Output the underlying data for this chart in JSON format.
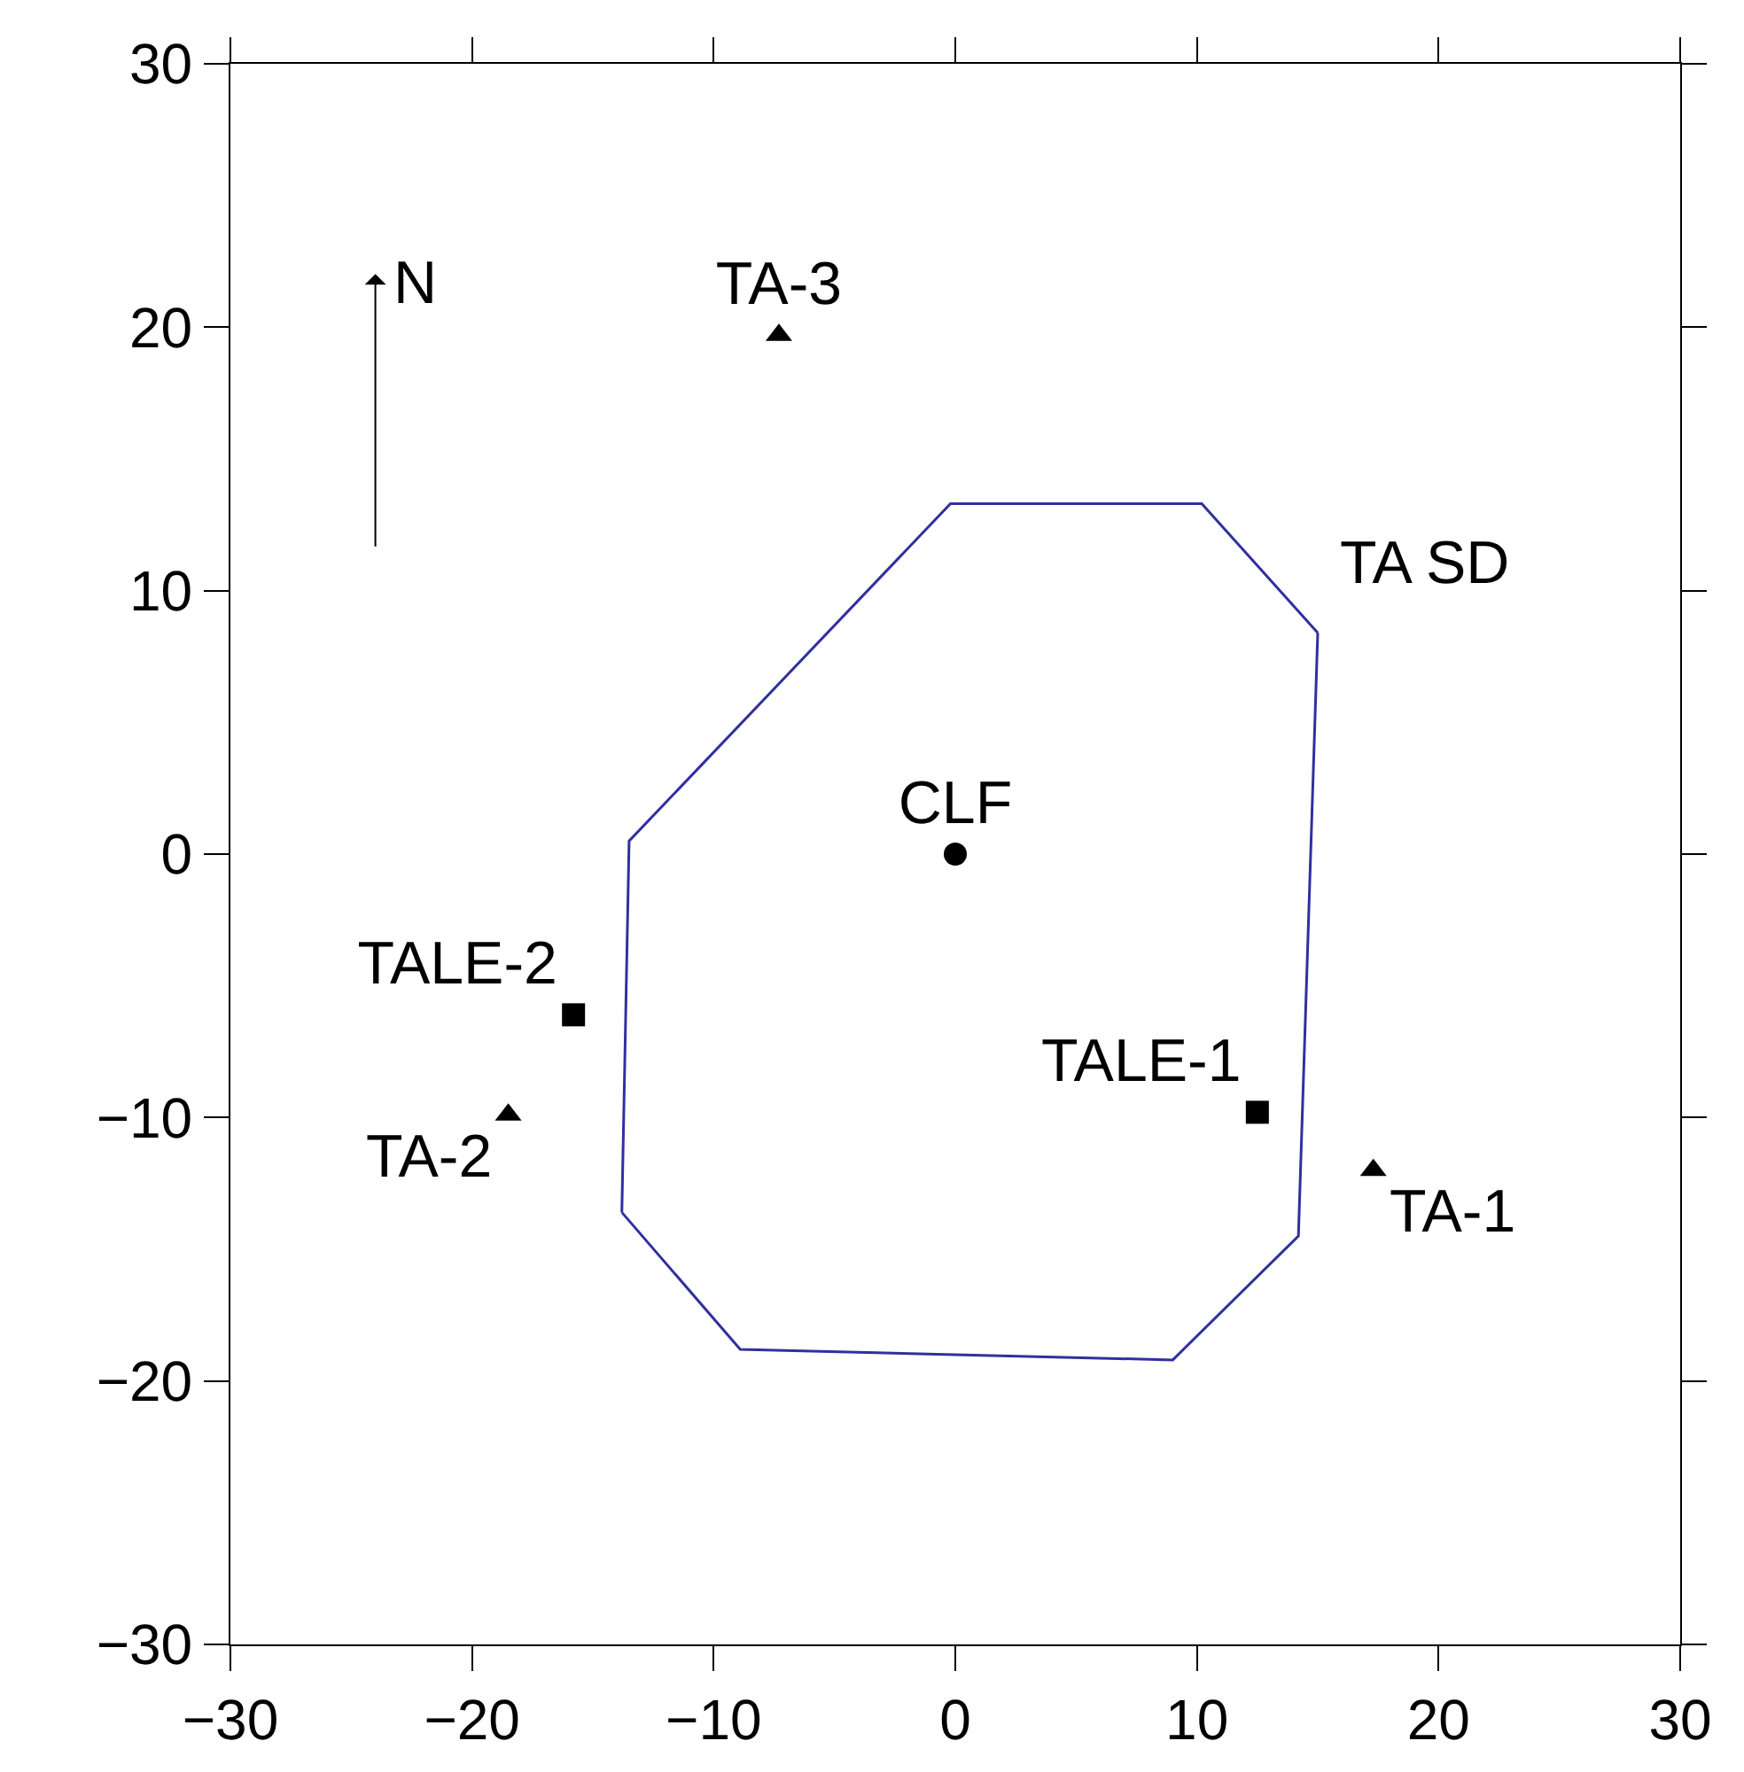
{
  "chart_data": {
    "type": "scatter",
    "xlim": [
      -30,
      30
    ],
    "ylim": [
      -30,
      30
    ],
    "xticks": [
      -30,
      -20,
      -10,
      0,
      10,
      20,
      30
    ],
    "yticks": [
      -30,
      -20,
      -10,
      0,
      10,
      20,
      30
    ],
    "grid": false,
    "legend": false,
    "annotations": [
      "N"
    ],
    "series": [
      {
        "name": "TA SD",
        "type": "line",
        "color": "#3030a0",
        "marker": "none",
        "line_style": "solid",
        "x": [
          -13.8,
          -13.5,
          -0.2,
          10.2,
          15.0
        ],
        "values": [
          -13.6,
          0.5,
          13.3,
          13.3,
          8.4
        ]
      },
      {
        "type": "line",
        "color": "#3030a0",
        "marker": "none",
        "line_style": "solid",
        "x": [
          -13.8,
          -8.9,
          9.0,
          14.2,
          15.0
        ],
        "values": [
          -13.6,
          -18.8,
          -19.2,
          -14.5,
          8.4
        ]
      },
      {
        "name": "CLF",
        "color": "#000000",
        "marker": "circle",
        "x": [
          0
        ],
        "values": [
          0
        ]
      },
      {
        "name": "TA-3",
        "color": "#000000",
        "marker": "triangle",
        "x": [
          -7.3
        ],
        "values": [
          19.7
        ]
      },
      {
        "name": "TALE-2",
        "color": "#000000",
        "marker": "square",
        "x": [
          -15.8
        ],
        "values": [
          -6.1
        ]
      },
      {
        "name": "TA-2",
        "color": "#000000",
        "marker": "triangle",
        "x": [
          -18.5
        ],
        "values": [
          -9.9
        ]
      },
      {
        "name": "TALE-1",
        "color": "#000000",
        "marker": "square",
        "x": [
          12.5
        ],
        "values": [
          -9.8
        ]
      },
      {
        "name": "TA-1",
        "color": "#000000",
        "marker": "triangle",
        "x": [
          17.3
        ],
        "values": [
          -12
        ]
      }
    ]
  }
}
